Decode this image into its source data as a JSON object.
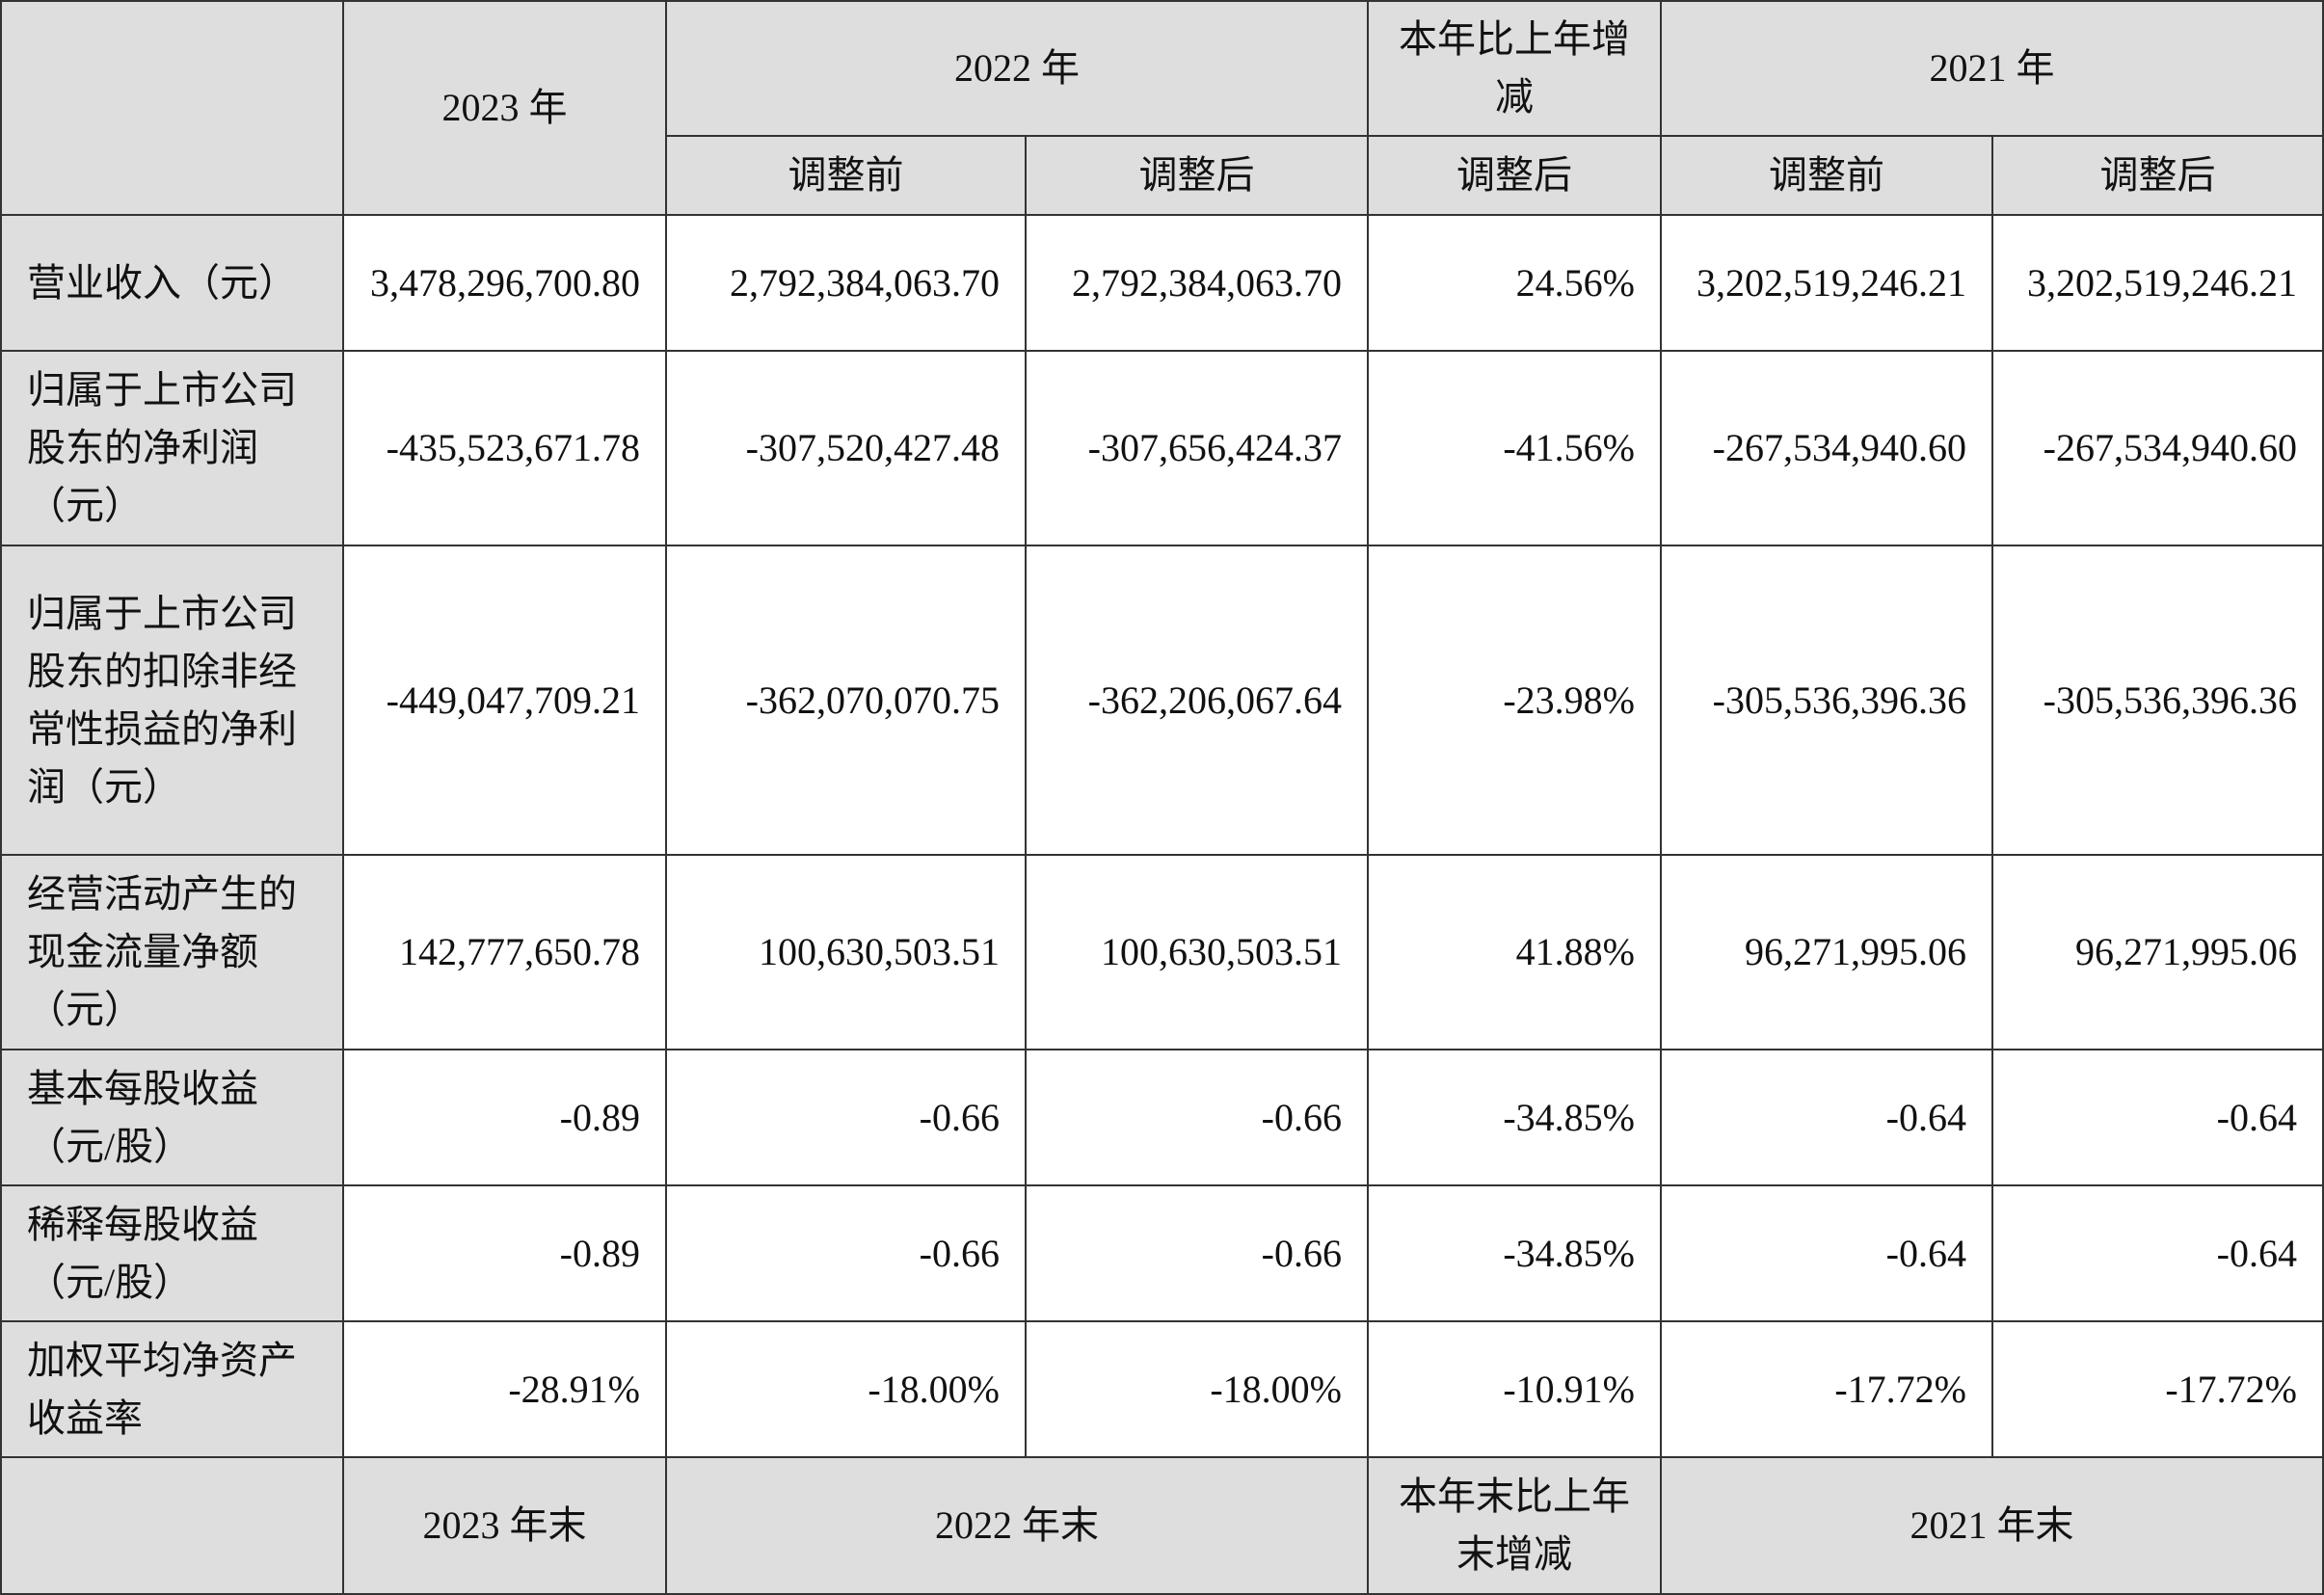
{
  "header": {
    "col_2023": "2023 年",
    "col_2022": "2022 年",
    "col_change": "本年比上年增减",
    "col_2021": "2021 年",
    "sub_before": "调整前",
    "sub_after": "调整后"
  },
  "rows": [
    {
      "label": "营业收入（元）",
      "values": [
        "3,478,296,700.80",
        "2,792,384,063.70",
        "2,792,384,063.70",
        "24.56%",
        "3,202,519,246.21",
        "3,202,519,246.21"
      ]
    },
    {
      "label": "归属于上市公司股东的净利润（元）",
      "values": [
        "-435,523,671.78",
        "-307,520,427.48",
        "-307,656,424.37",
        "-41.56%",
        "-267,534,940.60",
        "-267,534,940.60"
      ]
    },
    {
      "label": "归属于上市公司股东的扣除非经常性损益的净利润（元）",
      "values": [
        "-449,047,709.21",
        "-362,070,070.75",
        "-362,206,067.64",
        "-23.98%",
        "-305,536,396.36",
        "-305,536,396.36"
      ]
    },
    {
      "label": "经营活动产生的现金流量净额（元）",
      "values": [
        "142,777,650.78",
        "100,630,503.51",
        "100,630,503.51",
        "41.88%",
        "96,271,995.06",
        "96,271,995.06"
      ]
    },
    {
      "label": "基本每股收益（元/股）",
      "values": [
        "-0.89",
        "-0.66",
        "-0.66",
        "-34.85%",
        "-0.64",
        "-0.64"
      ]
    },
    {
      "label": "稀释每股收益（元/股）",
      "values": [
        "-0.89",
        "-0.66",
        "-0.66",
        "-34.85%",
        "-0.64",
        "-0.64"
      ]
    },
    {
      "label": "加权平均净资产收益率",
      "values": [
        "-28.91%",
        "-18.00%",
        "-18.00%",
        "-10.91%",
        "-17.72%",
        "-17.72%"
      ]
    }
  ],
  "footer": {
    "col_2023_end": "2023 年末",
    "col_2022_end": "2022 年末",
    "col_change_end": "本年末比上年末增减",
    "col_2021_end": "2021 年末"
  }
}
